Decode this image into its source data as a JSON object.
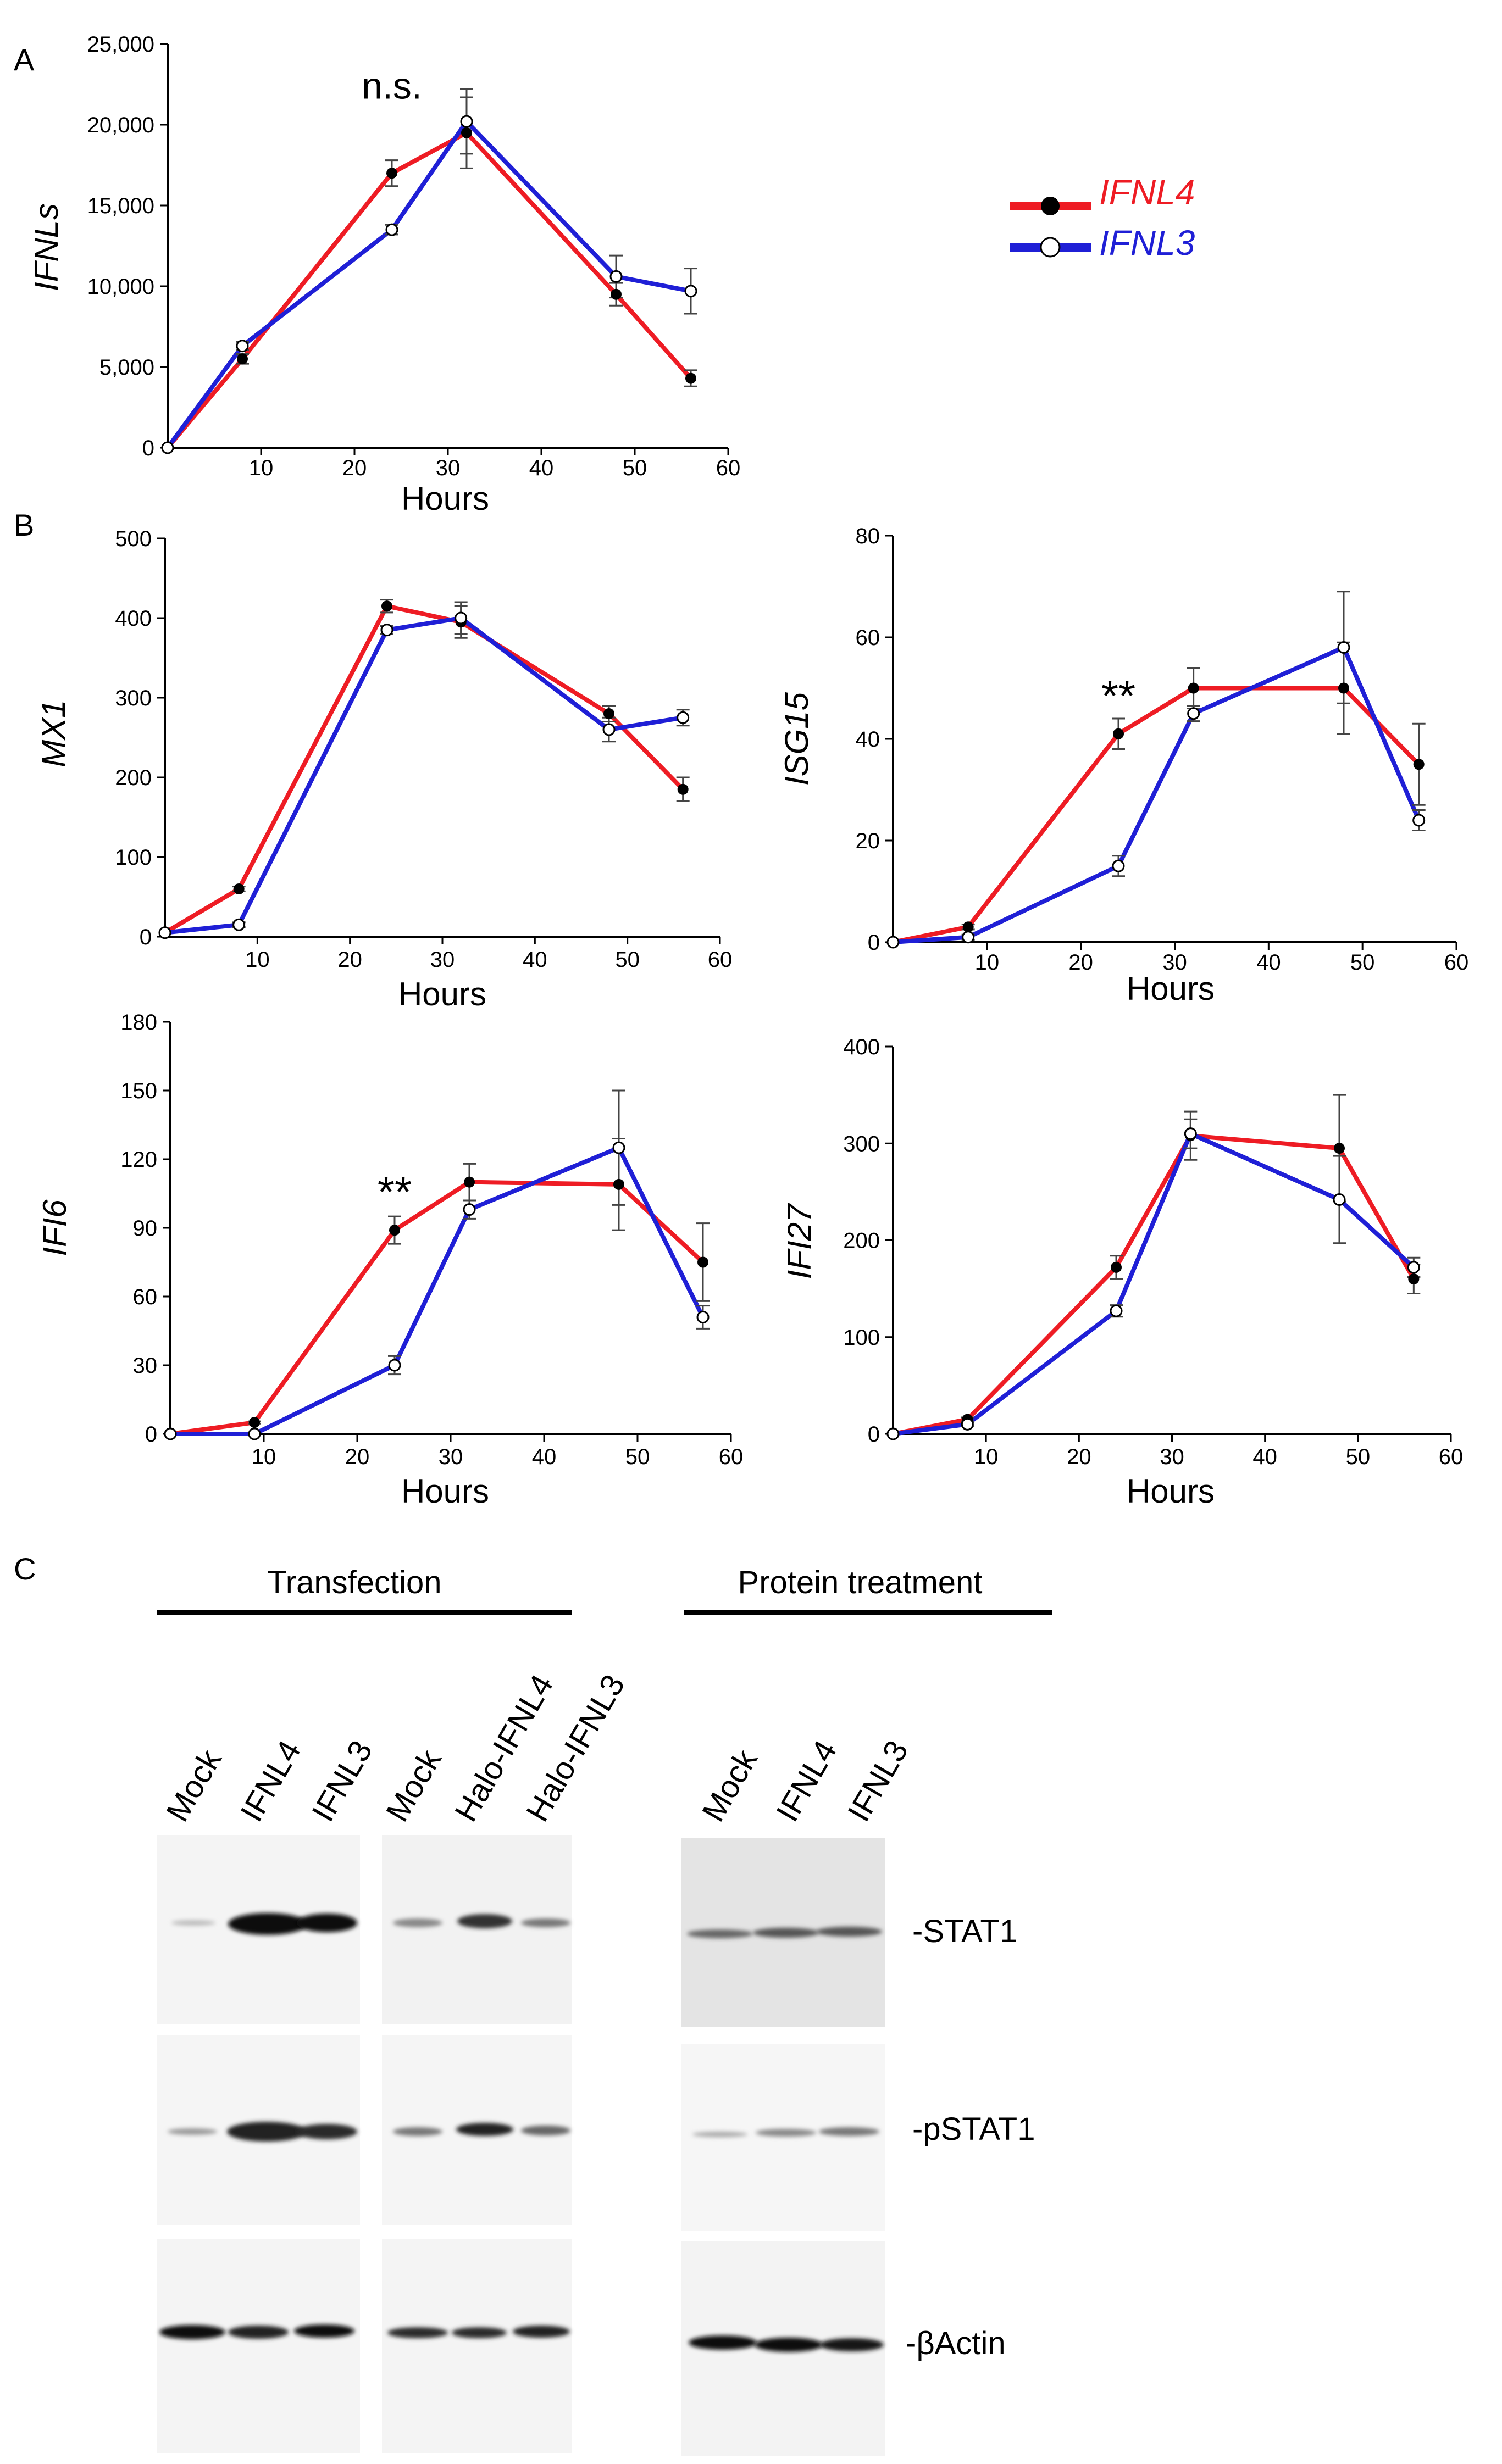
{
  "panels": {
    "a": "A",
    "b": "B",
    "c": "C"
  },
  "legend": {
    "items": [
      {
        "name": "IFNL4",
        "color": "#ee1c24",
        "marker": "filled"
      },
      {
        "name": "IFNL3",
        "color": "#1f1fd6",
        "marker": "open"
      }
    ]
  },
  "chart_data": [
    {
      "id": "ifnls",
      "type": "line",
      "ylabel": "IFNLs",
      "xlabel": "Hours",
      "xlim": [
        0,
        60
      ],
      "ylim": [
        0,
        25000
      ],
      "xticks": [
        "10",
        "20",
        "30",
        "40",
        "50",
        "60"
      ],
      "yticks": [
        "0",
        "5,000",
        "10,000",
        "15,000",
        "20,000",
        "25,000"
      ],
      "annotation": {
        "text": "n.s.",
        "x": 24,
        "y": 19500
      },
      "series": [
        {
          "name": "IFNL4",
          "x": [
            0,
            8,
            24,
            32,
            48,
            56
          ],
          "y": [
            0,
            5500,
            17000,
            19500,
            9500,
            4300
          ],
          "err": [
            0,
            300,
            800,
            2200,
            700,
            500
          ]
        },
        {
          "name": "IFNL3",
          "x": [
            0,
            8,
            24,
            32,
            48,
            56
          ],
          "y": [
            0,
            6300,
            13500,
            20200,
            10600,
            9700
          ],
          "err": [
            0,
            250,
            300,
            2000,
            1300,
            1400
          ]
        }
      ]
    },
    {
      "id": "mx1",
      "type": "line",
      "ylabel": "MX1",
      "xlabel": "Hours",
      "xlim": [
        0,
        60
      ],
      "ylim": [
        0,
        500
      ],
      "xticks": [
        "10",
        "20",
        "30",
        "40",
        "50",
        "60"
      ],
      "yticks": [
        "0",
        "100",
        "200",
        "300",
        "400",
        "500"
      ],
      "series": [
        {
          "name": "IFNL4",
          "x": [
            0,
            8,
            24,
            32,
            48,
            56
          ],
          "y": [
            5,
            60,
            415,
            395,
            280,
            185
          ],
          "err": [
            0,
            3,
            8,
            20,
            10,
            15
          ]
        },
        {
          "name": "IFNL3",
          "x": [
            0,
            8,
            24,
            32,
            48,
            56
          ],
          "y": [
            5,
            15,
            385,
            400,
            260,
            275
          ],
          "err": [
            0,
            3,
            5,
            20,
            15,
            10
          ]
        }
      ]
    },
    {
      "id": "isg15",
      "type": "line",
      "ylabel": "ISG15",
      "xlabel": "Hours",
      "xlim": [
        0,
        60
      ],
      "ylim": [
        0,
        80
      ],
      "xticks": [
        "10",
        "20",
        "30",
        "40",
        "50",
        "60"
      ],
      "yticks": [
        "0",
        "20",
        "40",
        "60",
        "80"
      ],
      "annotation": {
        "text": "**",
        "x": 24,
        "y": 41
      },
      "series": [
        {
          "name": "IFNL4",
          "x": [
            0,
            8,
            24,
            32,
            48,
            56
          ],
          "y": [
            0,
            3,
            41,
            50,
            50,
            35
          ],
          "err": [
            0,
            0.5,
            3,
            4,
            9,
            8
          ]
        },
        {
          "name": "IFNL3",
          "x": [
            0,
            8,
            24,
            32,
            48,
            56
          ],
          "y": [
            0,
            1,
            15,
            45,
            58,
            24
          ],
          "err": [
            0,
            0.5,
            2,
            1.5,
            11,
            2
          ]
        }
      ]
    },
    {
      "id": "ifi6",
      "type": "line",
      "ylabel": "IFI6",
      "xlabel": "Hours",
      "xlim": [
        0,
        60
      ],
      "ylim": [
        0,
        180
      ],
      "xticks": [
        "10",
        "20",
        "30",
        "40",
        "50",
        "60"
      ],
      "yticks": [
        "0",
        "30",
        "60",
        "90",
        "120",
        "150",
        "180"
      ],
      "annotation": {
        "text": "**",
        "x": 24,
        "y": 89
      },
      "series": [
        {
          "name": "IFNL4",
          "x": [
            0,
            9,
            24,
            32,
            48,
            57
          ],
          "y": [
            0,
            5,
            89,
            110,
            109,
            75
          ],
          "err": [
            0,
            0.5,
            6,
            8,
            20,
            17
          ]
        },
        {
          "name": "IFNL3",
          "x": [
            0,
            9,
            24,
            32,
            48,
            57
          ],
          "y": [
            0,
            0,
            30,
            98,
            125,
            51
          ],
          "err": [
            0,
            0.5,
            4,
            4,
            25,
            5
          ]
        }
      ]
    },
    {
      "id": "ifi27",
      "type": "line",
      "ylabel": "IFI27",
      "xlabel": "Hours",
      "xlim": [
        0,
        60
      ],
      "ylim": [
        0,
        400
      ],
      "xticks": [
        "10",
        "20",
        "30",
        "40",
        "50",
        "60"
      ],
      "yticks": [
        "0",
        "100",
        "200",
        "300",
        "400"
      ],
      "series": [
        {
          "name": "IFNL4",
          "x": [
            0,
            8,
            24,
            32,
            48,
            56
          ],
          "y": [
            0,
            15,
            172,
            308,
            295,
            160
          ],
          "err": [
            0,
            2,
            12,
            25,
            55,
            15
          ]
        },
        {
          "name": "IFNL3",
          "x": [
            0,
            8,
            24,
            32,
            48,
            56
          ],
          "y": [
            0,
            10,
            127,
            310,
            242,
            172
          ],
          "err": [
            0,
            2,
            6,
            15,
            45,
            10
          ]
        }
      ]
    }
  ],
  "western": {
    "group_transfection": "Transfection",
    "group_protein": "Protein treatment",
    "lanes_transfection": [
      "Mock",
      "IFNL4",
      "IFNL3"
    ],
    "lanes_halo": [
      "Mock",
      "Halo-IFNL4",
      "Halo-IFNL3"
    ],
    "lanes_protein": [
      "Mock",
      "IFNL4",
      "IFNL3"
    ],
    "rows": [
      "-STAT1",
      "-pSTAT1",
      "-βActin"
    ]
  }
}
